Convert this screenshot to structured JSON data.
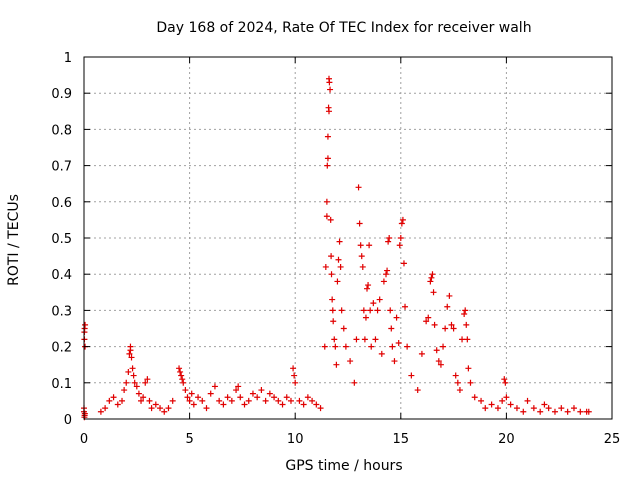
{
  "chart_data": {
    "type": "scatter",
    "title": "Day 168 of 2024, Rate Of TEC Index for receiver walh",
    "xlabel": "GPS time / hours",
    "ylabel": "ROTI / TECUs",
    "xlim": [
      0,
      25
    ],
    "ylim": [
      0,
      1
    ],
    "xticks": [
      0,
      5,
      10,
      15,
      20,
      25
    ],
    "xtick_labels": [
      "0",
      "5",
      "10",
      "15",
      "20",
      "25"
    ],
    "yticks": [
      0,
      0.1,
      0.2,
      0.3,
      0.4,
      0.5,
      0.6,
      0.7,
      0.8,
      0.9,
      1
    ],
    "ytick_labels": [
      "0",
      "0.1",
      "0.2",
      "0.3",
      "0.4",
      "0.5",
      "0.6",
      "0.7",
      "0.8",
      "0.9",
      "1"
    ],
    "grid": true,
    "marker": "+",
    "color": "#e00000",
    "series": [
      {
        "name": "ROTI",
        "x": [
          0.0,
          0.0,
          0.02,
          0.02,
          0.03,
          0.05,
          0.05,
          0.03,
          0.02,
          0.04,
          0.8,
          1.0,
          1.2,
          1.4,
          1.6,
          1.8,
          1.9,
          2.0,
          2.1,
          2.15,
          2.2,
          2.2,
          2.25,
          2.3,
          2.35,
          2.4,
          2.5,
          2.6,
          2.7,
          2.8,
          2.9,
          3.0,
          3.1,
          3.2,
          3.4,
          3.6,
          3.8,
          4.0,
          4.2,
          4.5,
          4.55,
          4.6,
          4.65,
          4.7,
          4.8,
          4.9,
          5.0,
          5.1,
          5.2,
          5.4,
          5.6,
          5.8,
          6.0,
          6.2,
          6.4,
          6.6,
          6.8,
          7.0,
          7.2,
          7.3,
          7.4,
          7.6,
          7.8,
          8.0,
          8.2,
          8.4,
          8.6,
          8.8,
          9.0,
          9.2,
          9.4,
          9.6,
          9.8,
          9.9,
          9.95,
          10.0,
          10.2,
          10.4,
          10.6,
          10.8,
          11.0,
          11.2,
          11.4,
          11.45,
          11.5,
          11.5,
          11.52,
          11.55,
          11.55,
          11.58,
          11.6,
          11.6,
          11.62,
          11.65,
          11.68,
          11.7,
          11.72,
          11.75,
          11.78,
          11.8,
          11.85,
          11.9,
          11.95,
          12.0,
          12.05,
          12.1,
          12.15,
          12.2,
          12.3,
          12.4,
          12.6,
          12.8,
          12.9,
          13.0,
          13.05,
          13.1,
          13.15,
          13.2,
          13.25,
          13.3,
          13.35,
          13.4,
          13.45,
          13.5,
          13.55,
          13.6,
          13.7,
          13.8,
          13.9,
          14.0,
          14.1,
          14.2,
          14.3,
          14.35,
          14.4,
          14.45,
          14.5,
          14.55,
          14.6,
          14.7,
          14.8,
          14.9,
          14.95,
          15.0,
          15.05,
          15.1,
          15.15,
          15.2,
          15.3,
          15.5,
          15.8,
          16.0,
          16.2,
          16.3,
          16.4,
          16.45,
          16.5,
          16.55,
          16.6,
          16.7,
          16.8,
          16.9,
          17.0,
          17.1,
          17.2,
          17.3,
          17.4,
          17.5,
          17.6,
          17.7,
          17.8,
          17.9,
          18.0,
          18.05,
          18.1,
          18.15,
          18.2,
          18.3,
          18.5,
          18.8,
          19.0,
          19.3,
          19.6,
          19.8,
          19.9,
          19.95,
          20.0,
          20.2,
          20.5,
          20.8,
          21.0,
          21.3,
          21.6,
          21.8,
          22.0,
          22.3,
          22.6,
          22.9,
          23.2,
          23.5,
          23.8,
          23.9
        ],
        "y": [
          0.02,
          0.03,
          0.22,
          0.24,
          0.25,
          0.26,
          0.2,
          0.01,
          0.005,
          0.015,
          0.02,
          0.03,
          0.05,
          0.06,
          0.04,
          0.05,
          0.08,
          0.1,
          0.13,
          0.18,
          0.19,
          0.2,
          0.17,
          0.14,
          0.12,
          0.1,
          0.09,
          0.07,
          0.05,
          0.06,
          0.1,
          0.11,
          0.05,
          0.03,
          0.04,
          0.03,
          0.02,
          0.03,
          0.05,
          0.14,
          0.13,
          0.12,
          0.11,
          0.1,
          0.08,
          0.06,
          0.05,
          0.07,
          0.04,
          0.06,
          0.05,
          0.03,
          0.07,
          0.09,
          0.05,
          0.04,
          0.06,
          0.05,
          0.08,
          0.09,
          0.06,
          0.04,
          0.05,
          0.07,
          0.06,
          0.08,
          0.05,
          0.07,
          0.06,
          0.05,
          0.04,
          0.06,
          0.05,
          0.14,
          0.12,
          0.1,
          0.05,
          0.04,
          0.06,
          0.05,
          0.04,
          0.03,
          0.2,
          0.42,
          0.56,
          0.6,
          0.7,
          0.72,
          0.78,
          0.86,
          0.85,
          0.94,
          0.93,
          0.91,
          0.55,
          0.45,
          0.4,
          0.33,
          0.3,
          0.27,
          0.22,
          0.2,
          0.15,
          0.38,
          0.44,
          0.49,
          0.42,
          0.3,
          0.25,
          0.2,
          0.16,
          0.1,
          0.22,
          0.64,
          0.54,
          0.48,
          0.45,
          0.42,
          0.3,
          0.22,
          0.28,
          0.36,
          0.37,
          0.48,
          0.3,
          0.2,
          0.32,
          0.22,
          0.3,
          0.33,
          0.18,
          0.38,
          0.4,
          0.41,
          0.49,
          0.5,
          0.3,
          0.25,
          0.2,
          0.16,
          0.28,
          0.21,
          0.48,
          0.5,
          0.54,
          0.55,
          0.43,
          0.31,
          0.2,
          0.12,
          0.08,
          0.18,
          0.27,
          0.28,
          0.38,
          0.39,
          0.4,
          0.35,
          0.26,
          0.19,
          0.16,
          0.15,
          0.2,
          0.25,
          0.31,
          0.34,
          0.26,
          0.25,
          0.12,
          0.1,
          0.08,
          0.22,
          0.29,
          0.3,
          0.26,
          0.22,
          0.14,
          0.1,
          0.06,
          0.05,
          0.03,
          0.04,
          0.03,
          0.05,
          0.11,
          0.1,
          0.06,
          0.04,
          0.03,
          0.02,
          0.05,
          0.03,
          0.02,
          0.04,
          0.03,
          0.02,
          0.03,
          0.02,
          0.03,
          0.02,
          0.02,
          0.02
        ]
      }
    ]
  }
}
